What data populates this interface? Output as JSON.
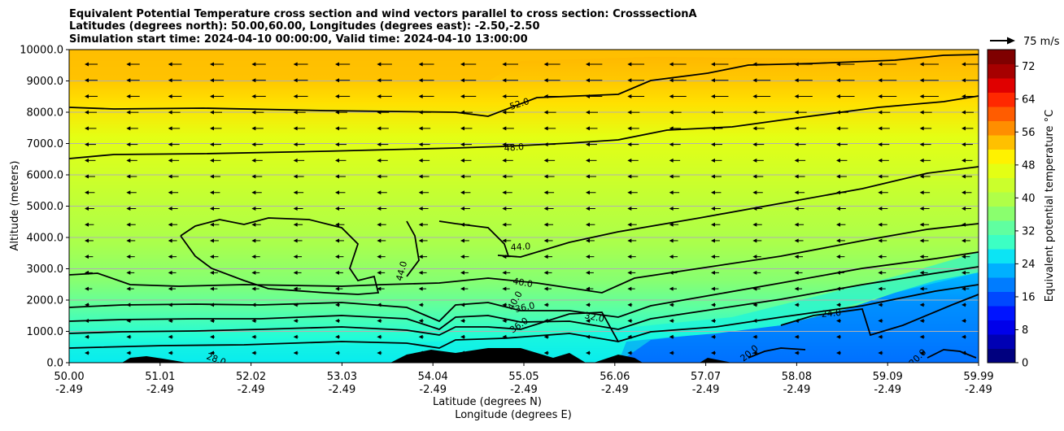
{
  "chart_data": {
    "type": "contour-cross-section",
    "title": [
      "Equivalent Potential Temperature cross section and wind vectors parallel to cross section: CrosssectionA",
      "Latitudes (degrees north): 50.00,60.00, Longitudes (degrees east): -2.50,-2.50",
      "Simulation start time: 2024-04-10 00:00:00, Valid time: 2024-04-10 13:00:00"
    ],
    "ylabel": "Altitude (meters)",
    "xlabel_lat": "Latitude (degrees N)",
    "xlabel_lon": "Longitude (degrees E)",
    "ylim": [
      0,
      10000
    ],
    "y_ticks": [
      "0.0",
      "1000.0",
      "2000.0",
      "3000.0",
      "4000.0",
      "5000.0",
      "6000.0",
      "7000.0",
      "8000.0",
      "9000.0",
      "10000.0"
    ],
    "x_ticks_lat": [
      "50.00",
      "51.01",
      "52.02",
      "53.03",
      "54.04",
      "55.05",
      "56.06",
      "57.07",
      "58.08",
      "59.09",
      "59.99"
    ],
    "x_ticks_lon": [
      "-2.49",
      "-2.49",
      "-2.49",
      "-2.49",
      "-2.49",
      "-2.49",
      "-2.49",
      "-2.49",
      "-2.49",
      "-2.49",
      "-2.49"
    ],
    "colorbar": {
      "label": "Equivalent potential temperature $^\\circ$C",
      "ticks": [
        "0",
        "8",
        "16",
        "24",
        "32",
        "40",
        "48",
        "56",
        "64",
        "72"
      ],
      "range": [
        0,
        76
      ],
      "colors": [
        "#00007f",
        "#0000b4",
        "#0000ea",
        "#0014ff",
        "#0048ff",
        "#007cff",
        "#00b0ff",
        "#0ce4f4",
        "#3cffc4",
        "#60ffa0",
        "#8aff6e",
        "#b0ff48",
        "#cbff2c",
        "#e4ff14",
        "#fff200",
        "#ffc000",
        "#ff8e00",
        "#ff5c00",
        "#ff2800",
        "#e00000",
        "#a60000",
        "#7f0000"
      ]
    },
    "wind_reference": "75 m/s",
    "contour_labels": [
      "52.0",
      "48.0",
      "44.0",
      "44.0",
      "40.0",
      "40.0",
      "36.0",
      "36.0",
      "32.0",
      "28.0",
      "24.0",
      "20.0",
      "20.0"
    ]
  }
}
